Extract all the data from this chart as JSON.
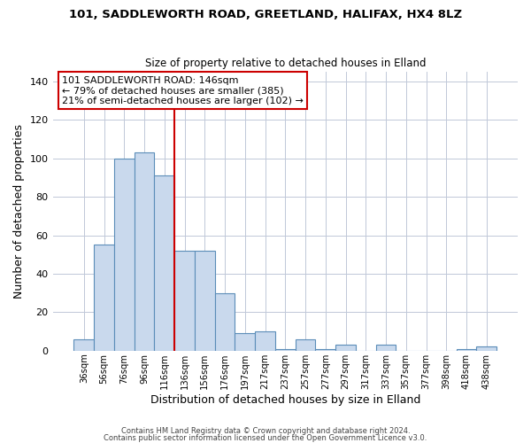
{
  "title": "101, SADDLEWORTH ROAD, GREETLAND, HALIFAX, HX4 8LZ",
  "subtitle": "Size of property relative to detached houses in Elland",
  "xlabel": "Distribution of detached houses by size in Elland",
  "ylabel": "Number of detached properties",
  "bar_labels": [
    "36sqm",
    "56sqm",
    "76sqm",
    "96sqm",
    "116sqm",
    "136sqm",
    "156sqm",
    "176sqm",
    "197sqm",
    "217sqm",
    "237sqm",
    "257sqm",
    "277sqm",
    "297sqm",
    "317sqm",
    "337sqm",
    "357sqm",
    "377sqm",
    "398sqm",
    "418sqm",
    "438sqm"
  ],
  "bar_heights": [
    6,
    55,
    100,
    103,
    91,
    52,
    52,
    30,
    9,
    10,
    1,
    6,
    1,
    3,
    0,
    3,
    0,
    0,
    0,
    1,
    2
  ],
  "bar_color": "#c9d9ed",
  "bar_edge_color": "#5b8db8",
  "ylim": [
    0,
    145
  ],
  "yticks": [
    0,
    20,
    40,
    60,
    80,
    100,
    120,
    140
  ],
  "vline_color": "#cc0000",
  "annotation_title": "101 SADDLEWORTH ROAD: 146sqm",
  "annotation_line1": "← 79% of detached houses are smaller (385)",
  "annotation_line2": "21% of semi-detached houses are larger (102) →",
  "annotation_box_color": "#cc0000",
  "footer1": "Contains HM Land Registry data © Crown copyright and database right 2024.",
  "footer2": "Contains public sector information licensed under the Open Government Licence v3.0.",
  "background_color": "#ffffff",
  "grid_color": "#c0c8d8"
}
